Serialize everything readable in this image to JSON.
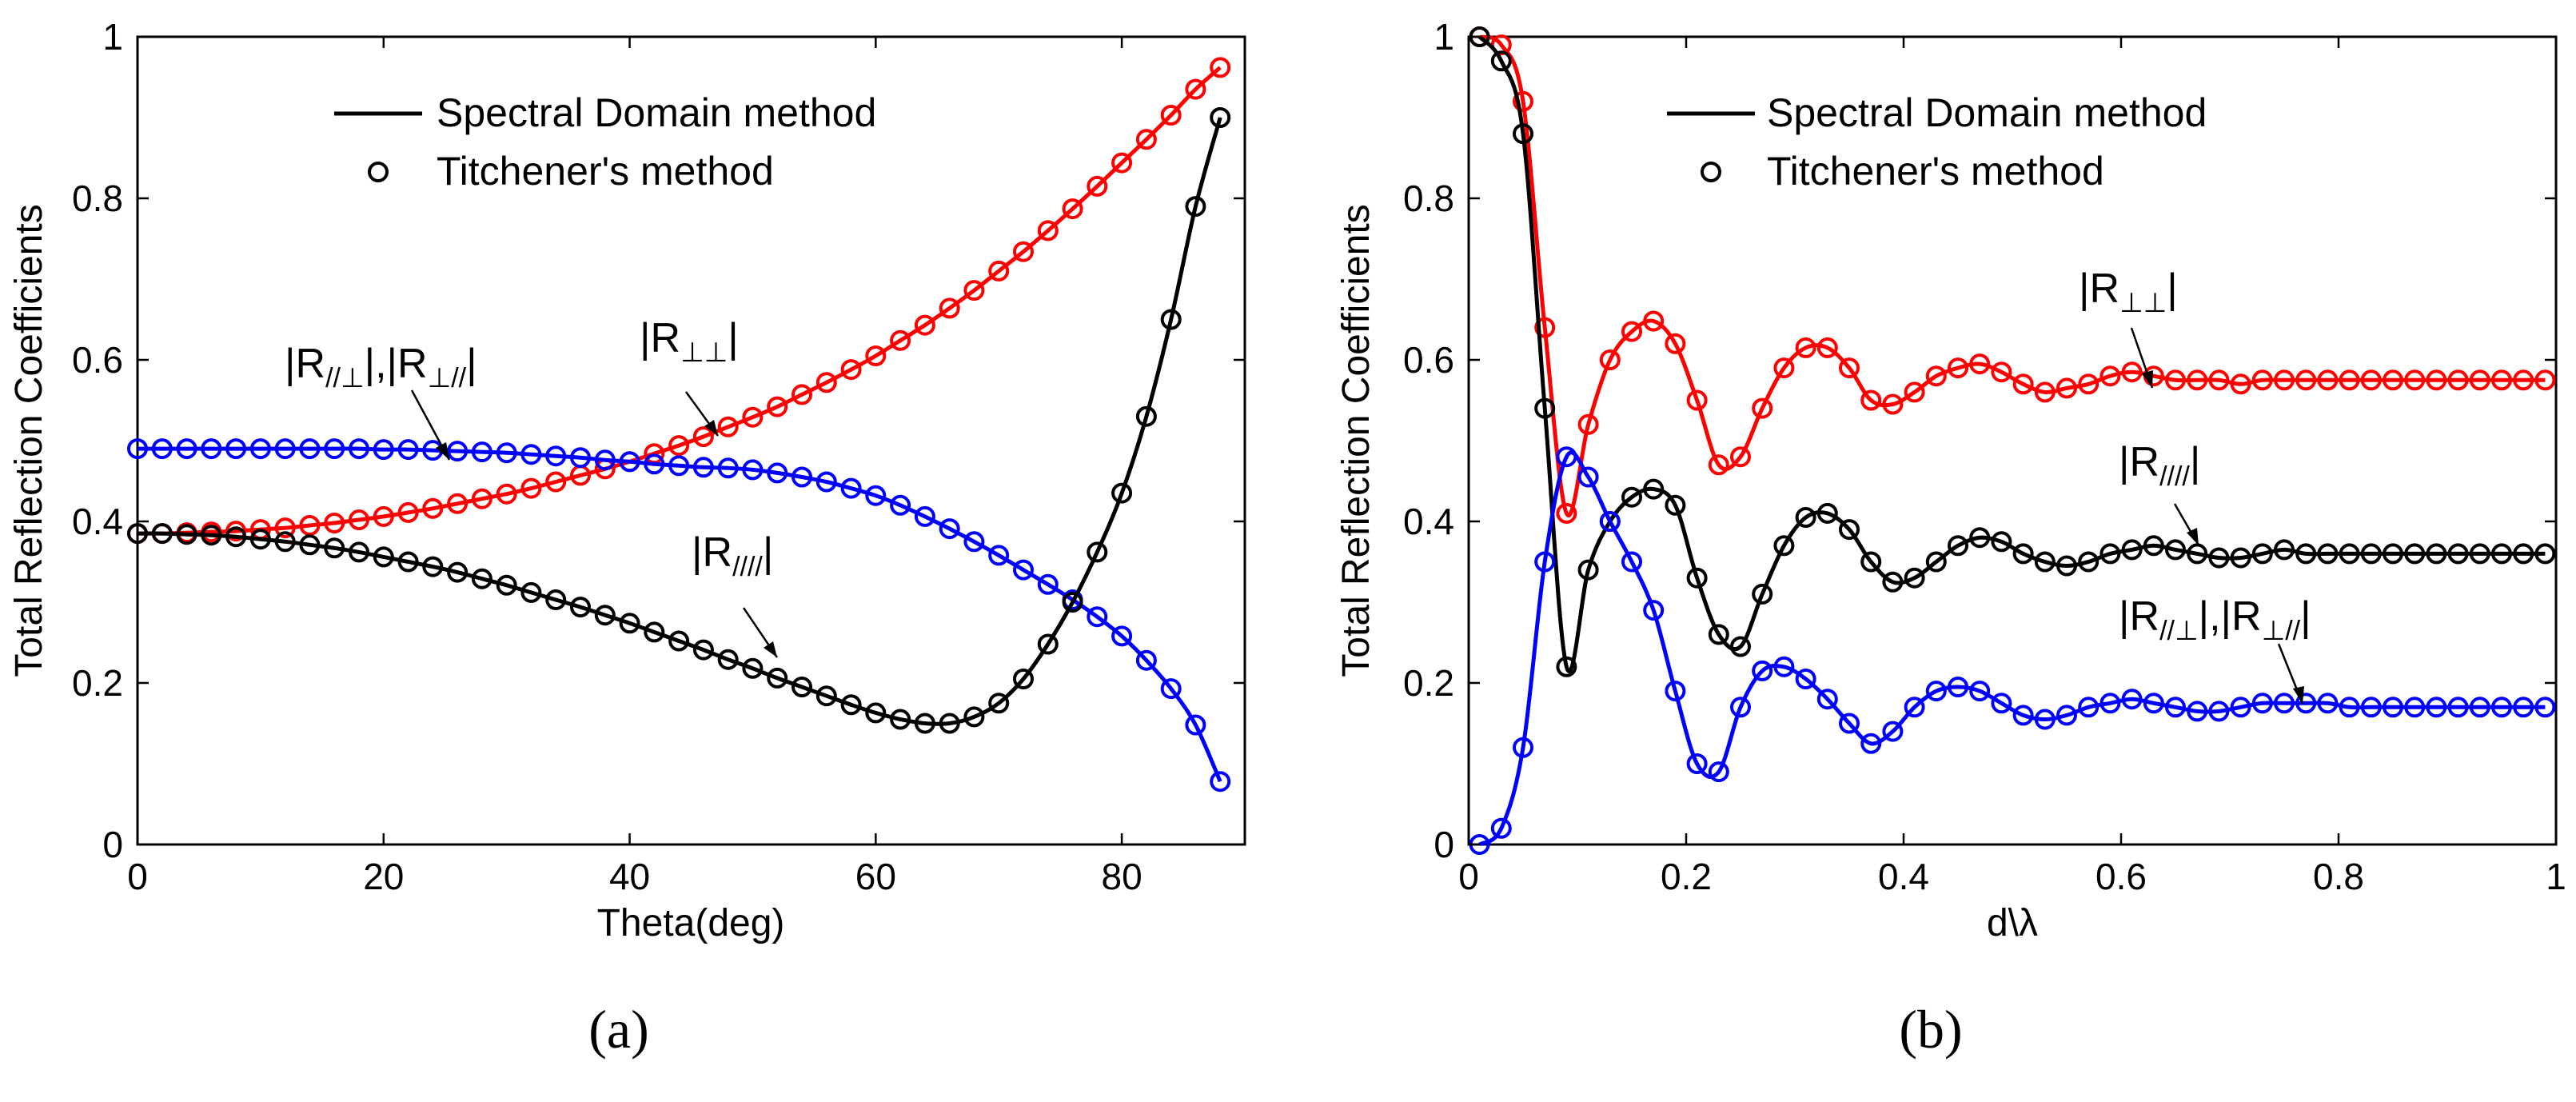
{
  "chart_data": [
    {
      "type": "line",
      "caption": "(a)",
      "xlabel": "Theta(deg)",
      "ylabel": "Total Reflection Coefficients",
      "xlim": [
        0,
        90
      ],
      "ylim": [
        0,
        1
      ],
      "xticks": [
        0,
        20,
        40,
        60,
        80
      ],
      "yticks": [
        0,
        0.2,
        0.4,
        0.6,
        0.8,
        1
      ],
      "grid": false,
      "legend": {
        "placement": "top-center",
        "entries": [
          {
            "label": "Spectral Domain method",
            "marker": "line"
          },
          {
            "label": "Titchener's method",
            "marker": "circle"
          }
        ]
      },
      "annotations": [
        {
          "main": "|R",
          "sub": "//⊥",
          "mid": "|,|R",
          "sub2": "⊥//",
          "end": "|"
        },
        {
          "main": "|R",
          "sub": "⊥⊥",
          "end": "|"
        },
        {
          "main": "|R",
          "sub": "////",
          "end": "|"
        }
      ],
      "x": [
        0,
        2,
        4,
        6,
        8,
        10,
        12,
        14,
        16,
        18,
        20,
        22,
        24,
        26,
        28,
        30,
        32,
        34,
        36,
        38,
        40,
        42,
        44,
        46,
        48,
        50,
        52,
        54,
        56,
        58,
        60,
        62,
        64,
        66,
        68,
        70,
        72,
        74,
        76,
        78,
        80,
        82,
        84,
        86,
        88
      ],
      "series": [
        {
          "color": "#ff0000",
          "values": [
            0.385,
            0.385,
            0.386,
            0.387,
            0.388,
            0.39,
            0.392,
            0.395,
            0.398,
            0.402,
            0.406,
            0.411,
            0.416,
            0.422,
            0.428,
            0.434,
            0.441,
            0.449,
            0.457,
            0.465,
            0.474,
            0.484,
            0.494,
            0.505,
            0.517,
            0.529,
            0.542,
            0.557,
            0.572,
            0.588,
            0.605,
            0.624,
            0.643,
            0.664,
            0.686,
            0.71,
            0.734,
            0.76,
            0.787,
            0.815,
            0.844,
            0.873,
            0.903,
            0.935,
            0.962
          ]
        },
        {
          "color": "#0000ff",
          "values": [
            0.49,
            0.49,
            0.49,
            0.49,
            0.49,
            0.49,
            0.49,
            0.49,
            0.49,
            0.49,
            0.489,
            0.489,
            0.488,
            0.487,
            0.486,
            0.485,
            0.483,
            0.481,
            0.479,
            0.476,
            0.474,
            0.471,
            0.469,
            0.467,
            0.466,
            0.464,
            0.46,
            0.455,
            0.449,
            0.441,
            0.432,
            0.42,
            0.406,
            0.391,
            0.375,
            0.358,
            0.34,
            0.322,
            0.303,
            0.282,
            0.258,
            0.228,
            0.193,
            0.148,
            0.078
          ]
        },
        {
          "color": "#000000",
          "values": [
            0.385,
            0.385,
            0.384,
            0.383,
            0.381,
            0.378,
            0.375,
            0.371,
            0.367,
            0.362,
            0.356,
            0.35,
            0.344,
            0.337,
            0.329,
            0.321,
            0.312,
            0.303,
            0.294,
            0.284,
            0.274,
            0.263,
            0.252,
            0.241,
            0.229,
            0.218,
            0.206,
            0.195,
            0.184,
            0.173,
            0.163,
            0.155,
            0.15,
            0.15,
            0.158,
            0.175,
            0.205,
            0.248,
            0.3,
            0.362,
            0.435,
            0.53,
            0.65,
            0.79,
            0.9
          ]
        }
      ]
    },
    {
      "type": "line",
      "caption": "(b)",
      "xlabel": "d\\λ",
      "ylabel": "Total Reflection Coefficients",
      "xlim": [
        0,
        1
      ],
      "ylim": [
        0,
        1
      ],
      "xticks": [
        0,
        0.2,
        0.4,
        0.6,
        0.8,
        1
      ],
      "yticks": [
        0,
        0.2,
        0.4,
        0.6,
        0.8,
        1
      ],
      "grid": false,
      "legend": {
        "placement": "top-center",
        "entries": [
          {
            "label": "Spectral Domain method",
            "marker": "line"
          },
          {
            "label": "Titchener's method",
            "marker": "circle"
          }
        ]
      },
      "annotations": [
        {
          "main": "|R",
          "sub": "⊥⊥",
          "end": "|"
        },
        {
          "main": "|R",
          "sub": "////",
          "end": "|"
        },
        {
          "main": "|R",
          "sub": "//⊥",
          "mid": "|,|R",
          "sub2": "⊥//",
          "end": "|"
        }
      ],
      "x": [
        0.01,
        0.03,
        0.05,
        0.07,
        0.09,
        0.11,
        0.13,
        0.15,
        0.17,
        0.19,
        0.21,
        0.23,
        0.25,
        0.27,
        0.29,
        0.31,
        0.33,
        0.35,
        0.37,
        0.39,
        0.41,
        0.43,
        0.45,
        0.47,
        0.49,
        0.51,
        0.53,
        0.55,
        0.57,
        0.59,
        0.61,
        0.63,
        0.65,
        0.67,
        0.69,
        0.71,
        0.73,
        0.75,
        0.77,
        0.79,
        0.81,
        0.83,
        0.85,
        0.87,
        0.89,
        0.91,
        0.93,
        0.95,
        0.97,
        0.99
      ],
      "series": [
        {
          "color": "#ff0000",
          "values": [
            1.0,
            0.99,
            0.92,
            0.64,
            0.41,
            0.52,
            0.6,
            0.635,
            0.648,
            0.62,
            0.55,
            0.47,
            0.48,
            0.54,
            0.59,
            0.615,
            0.615,
            0.59,
            0.55,
            0.545,
            0.56,
            0.58,
            0.59,
            0.595,
            0.585,
            0.57,
            0.56,
            0.565,
            0.57,
            0.58,
            0.585,
            0.58,
            0.575,
            0.575,
            0.575,
            0.57,
            0.575,
            0.575,
            0.575,
            0.575,
            0.575,
            0.575,
            0.575,
            0.575,
            0.575,
            0.575,
            0.575,
            0.575,
            0.575,
            0.575
          ]
        },
        {
          "color": "#000000",
          "values": [
            1.0,
            0.97,
            0.88,
            0.54,
            0.22,
            0.34,
            0.4,
            0.43,
            0.44,
            0.42,
            0.33,
            0.26,
            0.245,
            0.31,
            0.37,
            0.405,
            0.41,
            0.39,
            0.35,
            0.325,
            0.33,
            0.35,
            0.37,
            0.38,
            0.375,
            0.36,
            0.35,
            0.345,
            0.35,
            0.36,
            0.365,
            0.37,
            0.365,
            0.36,
            0.355,
            0.355,
            0.36,
            0.365,
            0.36,
            0.36,
            0.36,
            0.36,
            0.36,
            0.36,
            0.36,
            0.36,
            0.36,
            0.36,
            0.36,
            0.36
          ]
        },
        {
          "color": "#0000ff",
          "values": [
            0.0,
            0.02,
            0.12,
            0.35,
            0.48,
            0.455,
            0.4,
            0.35,
            0.29,
            0.19,
            0.1,
            0.09,
            0.17,
            0.215,
            0.22,
            0.205,
            0.18,
            0.15,
            0.125,
            0.14,
            0.17,
            0.19,
            0.195,
            0.19,
            0.175,
            0.16,
            0.155,
            0.16,
            0.17,
            0.175,
            0.18,
            0.175,
            0.17,
            0.165,
            0.165,
            0.17,
            0.175,
            0.175,
            0.175,
            0.175,
            0.17,
            0.17,
            0.17,
            0.17,
            0.17,
            0.17,
            0.17,
            0.17,
            0.17,
            0.17
          ]
        }
      ]
    }
  ]
}
